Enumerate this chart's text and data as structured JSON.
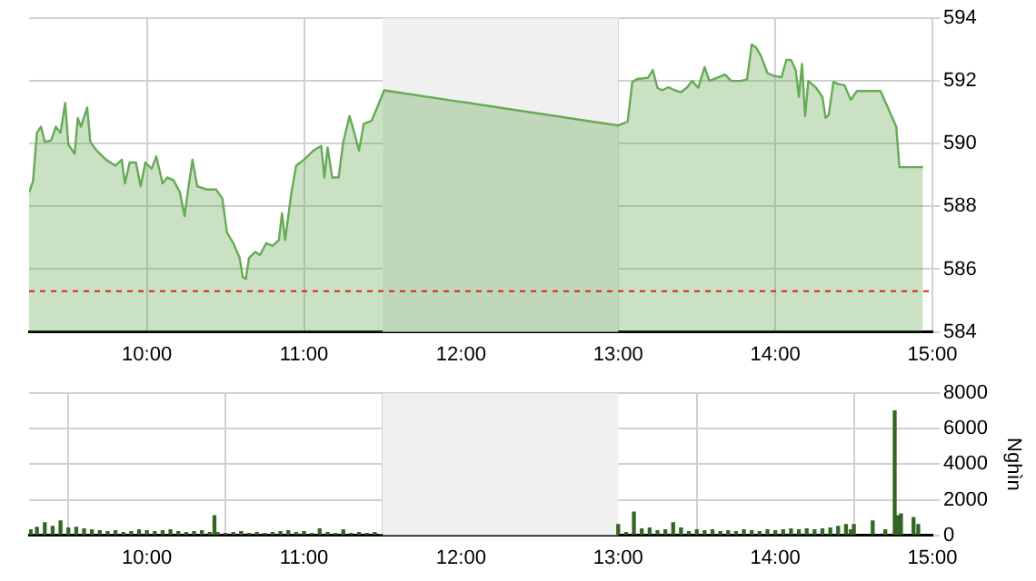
{
  "chart_data": [
    {
      "type": "area",
      "color": "#66aa55",
      "grid": true,
      "xlim": [
        9.25,
        15
      ],
      "ylim": [
        584,
        594
      ],
      "xticks": [
        {
          "value": 10,
          "label": "10:00"
        },
        {
          "value": 11,
          "label": "11:00"
        },
        {
          "value": 12,
          "label": "12:00"
        },
        {
          "value": 13,
          "label": "13:00"
        },
        {
          "value": 14,
          "label": "14:00"
        },
        {
          "value": 15,
          "label": "15:00"
        }
      ],
      "yticks": [
        584,
        586,
        588,
        590,
        592,
        594
      ],
      "bands": [
        {
          "axis": "x",
          "from": 11.5,
          "to": 13,
          "color": "#f0f0f0"
        }
      ],
      "ref_lines": [
        {
          "axis": "y",
          "value": 585.3,
          "color": "#dd2222",
          "line_style": "dashed"
        }
      ],
      "x": [
        9.25,
        9.275,
        9.3,
        9.326,
        9.35,
        9.39,
        9.42,
        9.45,
        9.48,
        9.5,
        9.54,
        9.56,
        9.58,
        9.62,
        9.64,
        9.68,
        9.74,
        9.8,
        9.84,
        9.86,
        9.89,
        9.93,
        9.96,
        9.99,
        10.03,
        10.06,
        10.1,
        10.13,
        10.17,
        10.21,
        10.24,
        10.26,
        10.29,
        10.32,
        10.38,
        10.44,
        10.48,
        10.51,
        10.55,
        10.59,
        10.61,
        10.63,
        10.65,
        10.69,
        10.72,
        10.76,
        10.8,
        10.84,
        10.86,
        10.88,
        10.92,
        10.95,
        11.0,
        11.06,
        11.11,
        11.13,
        11.15,
        11.18,
        11.22,
        11.25,
        11.29,
        11.32,
        11.35,
        11.38,
        11.43,
        11.47,
        11.51,
        13.0,
        13.06,
        13.09,
        13.12,
        13.19,
        13.22,
        13.25,
        13.28,
        13.32,
        13.36,
        13.4,
        13.44,
        13.47,
        13.51,
        13.55,
        13.58,
        13.63,
        13.68,
        13.72,
        13.78,
        13.82,
        13.85,
        13.88,
        13.91,
        13.95,
        13.99,
        14.04,
        14.07,
        14.1,
        14.13,
        14.15,
        14.17,
        14.19,
        14.21,
        14.26,
        14.3,
        14.32,
        14.34,
        14.37,
        14.4,
        14.44,
        14.48,
        14.52,
        14.67,
        14.77,
        14.79,
        14.94
      ],
      "values": [
        588.45,
        588.8,
        590.35,
        590.54,
        590.06,
        590.1,
        590.54,
        590.35,
        591.3,
        589.97,
        589.68,
        590.82,
        590.54,
        591.15,
        590.06,
        589.78,
        589.49,
        589.3,
        589.49,
        588.73,
        589.4,
        589.4,
        588.64,
        589.4,
        589.2,
        589.59,
        588.73,
        588.92,
        588.83,
        588.45,
        587.69,
        588.45,
        589.49,
        588.64,
        588.54,
        588.54,
        588.26,
        587.16,
        586.83,
        586.36,
        585.75,
        585.69,
        586.36,
        586.55,
        586.45,
        586.83,
        586.74,
        586.93,
        587.78,
        586.93,
        588.45,
        589.3,
        589.49,
        589.78,
        589.93,
        588.92,
        589.88,
        588.92,
        588.92,
        590.06,
        590.88,
        590.35,
        589.78,
        590.63,
        590.73,
        591.2,
        591.7,
        590.58,
        590.7,
        591.97,
        592.06,
        592.1,
        592.35,
        591.78,
        591.7,
        591.8,
        591.7,
        591.64,
        591.8,
        592.0,
        591.78,
        592.44,
        592.0,
        592.1,
        592.2,
        592.0,
        592.0,
        592.05,
        593.16,
        593.05,
        592.78,
        592.25,
        592.16,
        592.12,
        592.67,
        592.67,
        592.35,
        591.49,
        592.54,
        590.88,
        592.0,
        591.78,
        591.49,
        590.82,
        590.92,
        591.97,
        591.9,
        591.87,
        591.4,
        591.68,
        591.68,
        590.54,
        589.25,
        589.25
      ]
    },
    {
      "type": "bar",
      "color": "#336622",
      "grid": true,
      "ylabel": "Nghìn",
      "xlim": [
        9.25,
        15
      ],
      "ylim": [
        0,
        8000
      ],
      "xticks": [
        {
          "value": 10,
          "label": "10:00"
        },
        {
          "value": 11,
          "label": "11:00"
        },
        {
          "value": 12,
          "label": "12:00"
        },
        {
          "value": 13,
          "label": "13:00"
        },
        {
          "value": 14,
          "label": "14:00"
        },
        {
          "value": 15,
          "label": "15:00"
        }
      ],
      "yticks": [
        0,
        2000,
        4000,
        6000,
        8000
      ],
      "bands": [
        {
          "axis": "x",
          "from": 11.5,
          "to": 13,
          "color": "#f0f0f0"
        }
      ],
      "x": [
        9.26,
        9.3,
        9.35,
        9.4,
        9.45,
        9.5,
        9.55,
        9.6,
        9.65,
        9.7,
        9.75,
        9.8,
        9.85,
        9.9,
        9.95,
        10.0,
        10.05,
        10.1,
        10.15,
        10.2,
        10.25,
        10.3,
        10.35,
        10.4,
        10.43,
        10.45,
        10.5,
        10.55,
        10.6,
        10.65,
        10.7,
        10.75,
        10.8,
        10.85,
        10.9,
        10.95,
        11.0,
        11.05,
        11.1,
        11.15,
        11.2,
        11.25,
        11.3,
        11.35,
        11.4,
        11.45,
        11.49,
        13.0,
        13.05,
        13.1,
        13.15,
        13.2,
        13.25,
        13.3,
        13.35,
        13.4,
        13.45,
        13.5,
        13.55,
        13.6,
        13.65,
        13.7,
        13.75,
        13.8,
        13.85,
        13.9,
        13.95,
        14.0,
        14.05,
        14.1,
        14.15,
        14.2,
        14.25,
        14.3,
        14.35,
        14.4,
        14.45,
        14.48,
        14.5,
        14.62,
        14.7,
        14.76,
        14.78,
        14.8,
        14.88,
        14.91
      ],
      "values": [
        300,
        450,
        700,
        500,
        800,
        400,
        450,
        350,
        300,
        250,
        200,
        250,
        150,
        200,
        300,
        250,
        200,
        250,
        300,
        200,
        150,
        200,
        250,
        150,
        1100,
        150,
        100,
        150,
        200,
        100,
        150,
        100,
        150,
        200,
        250,
        150,
        200,
        100,
        350,
        150,
        100,
        300,
        100,
        150,
        100,
        150,
        50,
        600,
        150,
        1300,
        350,
        400,
        250,
        300,
        700,
        400,
        200,
        300,
        250,
        300,
        200,
        250,
        200,
        300,
        250,
        200,
        300,
        250,
        300,
        350,
        300,
        350,
        300,
        350,
        400,
        500,
        600,
        300,
        600,
        800,
        300,
        7000,
        1100,
        1200,
        1000,
        600
      ]
    }
  ]
}
